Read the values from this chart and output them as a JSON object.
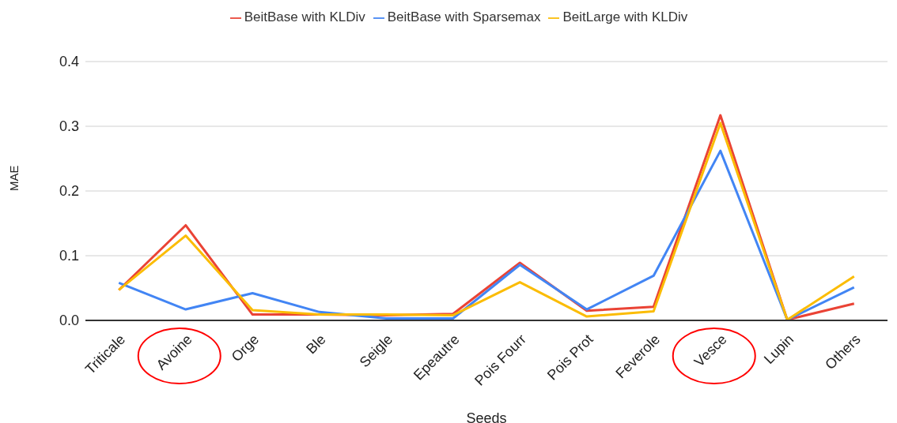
{
  "chart_data": {
    "type": "line",
    "xlabel": "Seeds",
    "ylabel": "MAE",
    "categories": [
      "Triticale",
      "Avoine",
      "Orge",
      "Ble",
      "Seigle",
      "Epeautre",
      "Pois Fourr",
      "Pois Prot",
      "Feverole",
      "Vesce",
      "Lupin",
      "Others"
    ],
    "series": [
      {
        "name": "BeitBase with KLDiv",
        "color": "#ea4335",
        "values": [
          0.047,
          0.147,
          0.009,
          0.009,
          0.008,
          0.01,
          0.089,
          0.015,
          0.021,
          0.317,
          0.001,
          0.026
        ]
      },
      {
        "name": "BeitBase with Sparsemax",
        "color": "#4285f4",
        "values": [
          0.058,
          0.017,
          0.042,
          0.013,
          0.003,
          0.003,
          0.086,
          0.017,
          0.069,
          0.262,
          0.001,
          0.051
        ]
      },
      {
        "name": "BeitLarge with KLDiv",
        "color": "#fbbc04",
        "values": [
          0.047,
          0.131,
          0.016,
          0.009,
          0.009,
          0.008,
          0.059,
          0.006,
          0.014,
          0.305,
          0.001,
          0.068
        ]
      }
    ],
    "ylim": [
      0,
      0.4
    ],
    "yticks": [
      "0.0",
      0.1,
      0.2,
      0.3,
      0.4
    ],
    "grid": "y",
    "legend": "top",
    "marker": "none",
    "line_style": "solid"
  }
}
